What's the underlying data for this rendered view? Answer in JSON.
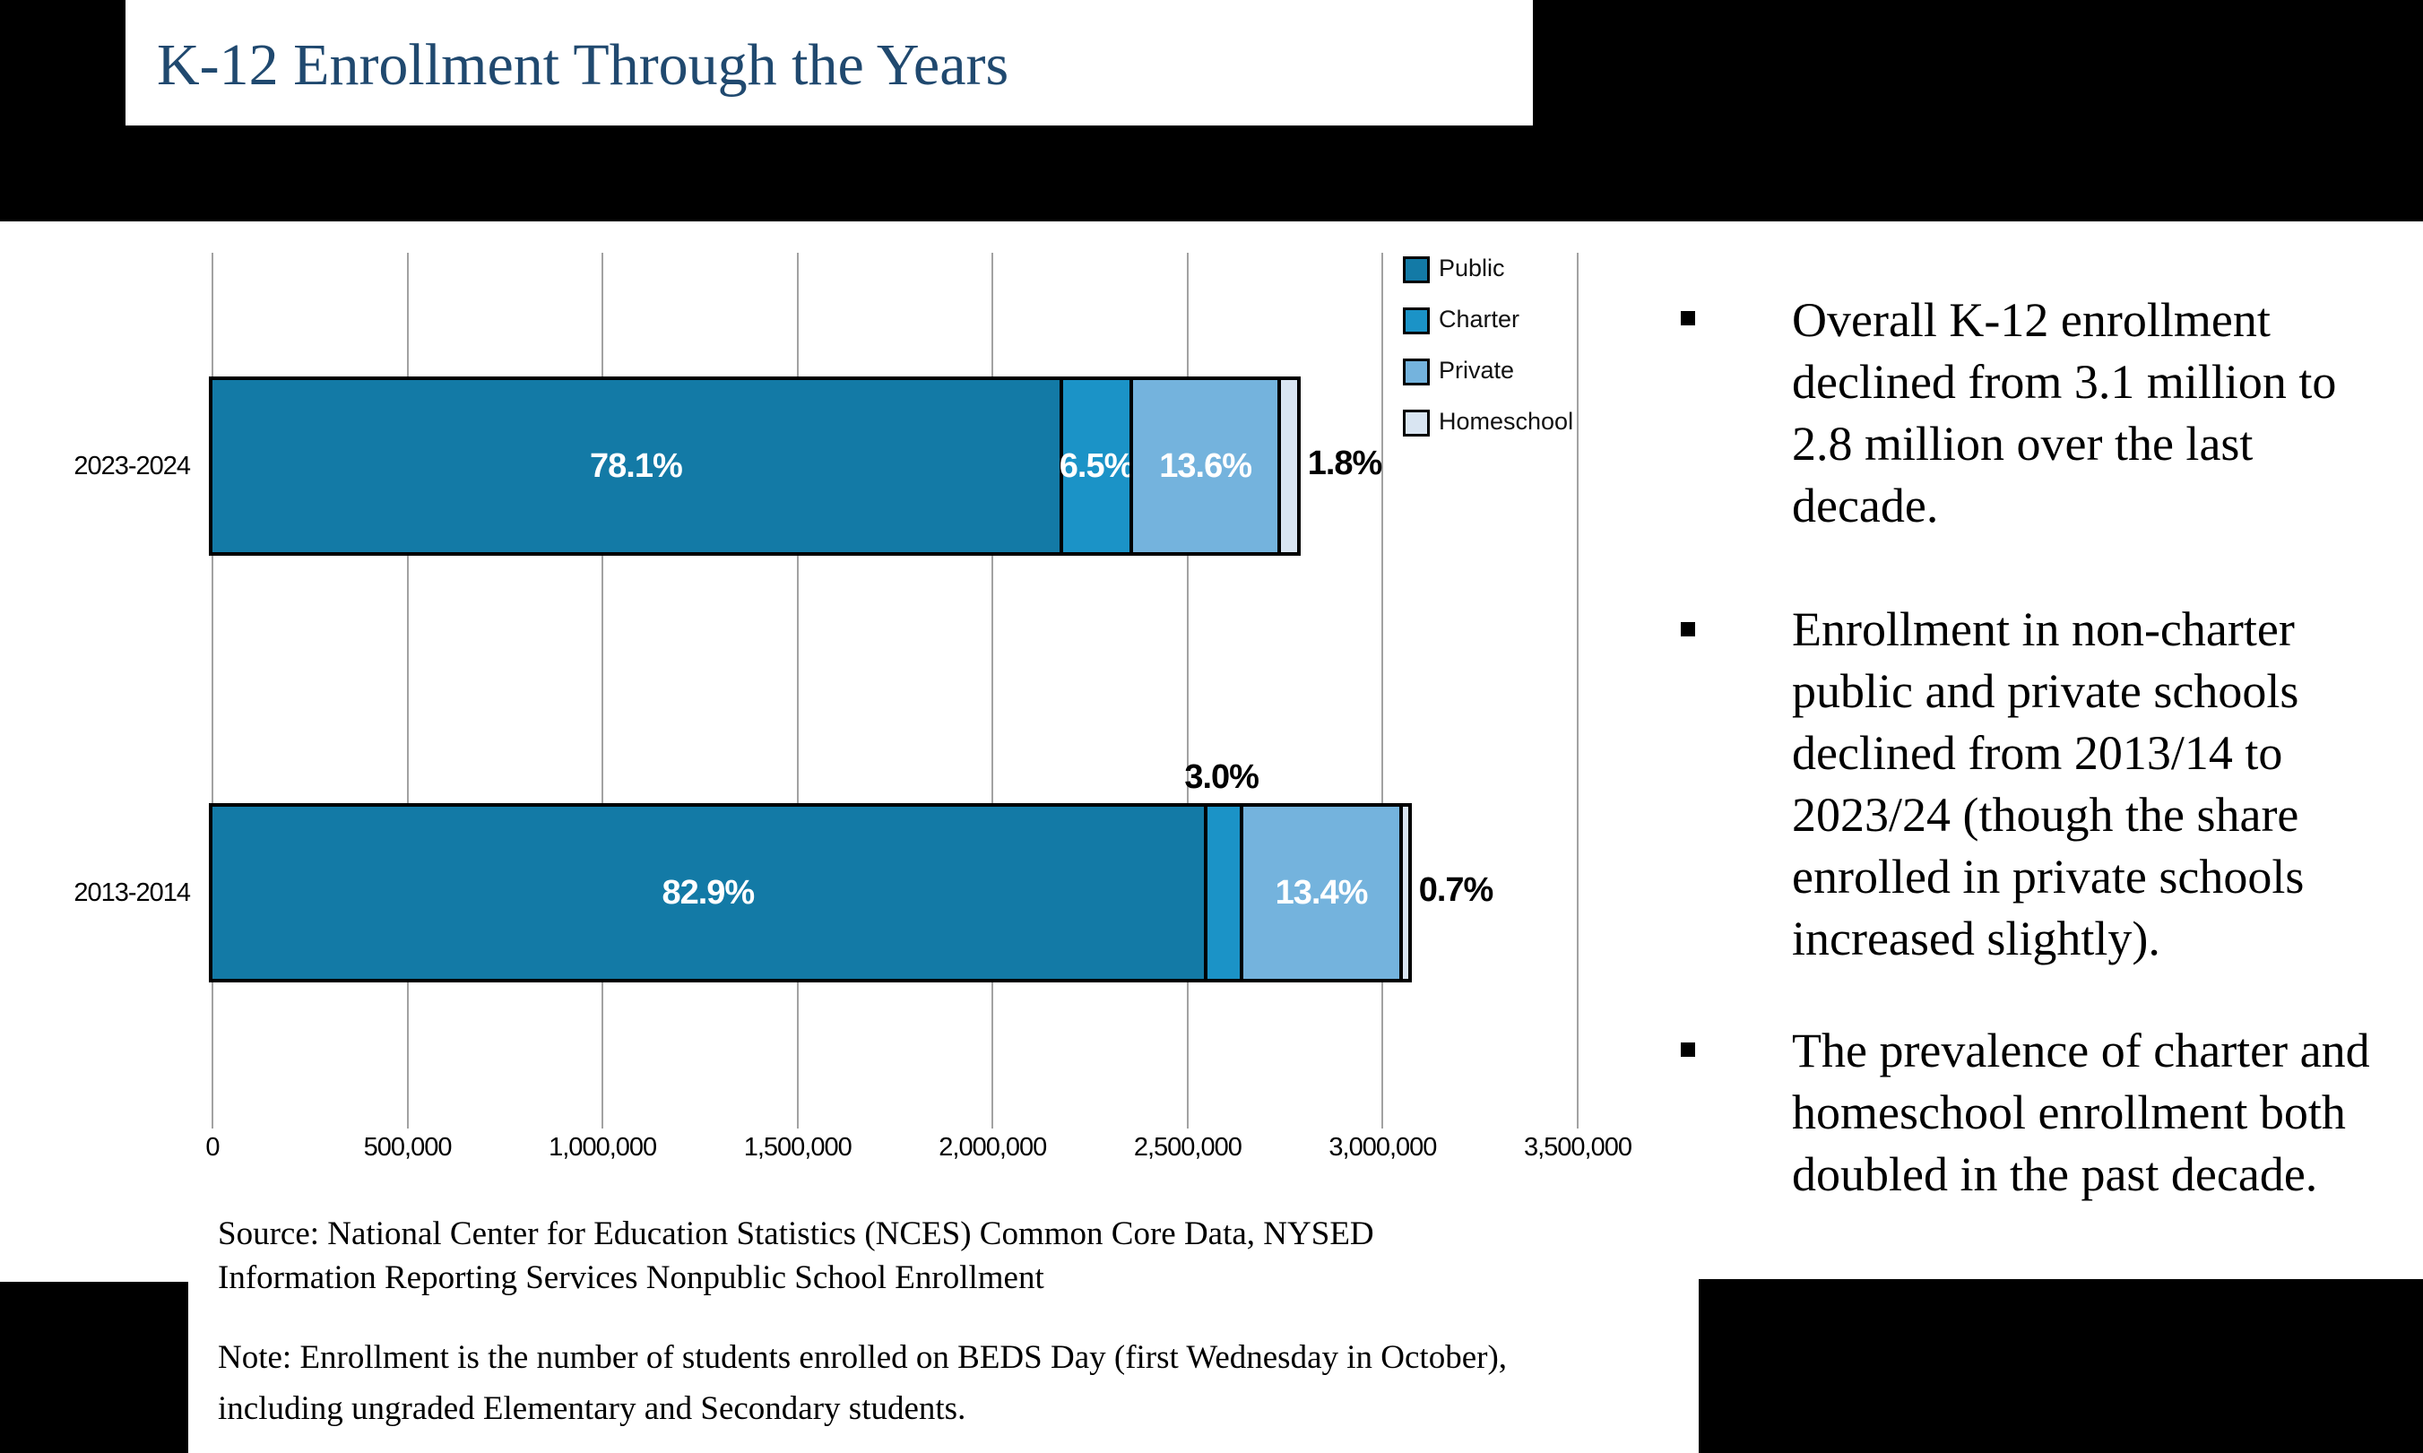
{
  "slide": {
    "title": "K-12 Enrollment Through the Years",
    "source_note": "Source: National Center for Education Statistics (NCES) Common Core Data, NYSED\nInformation Reporting Services Nonpublic School Enrollment",
    "beds_note": "Note: Enrollment is the number of students enrolled on BEDS Day (first Wednesday in October),\nincluding ungraded Elementary and Secondary students.",
    "bullets": [
      "Overall K-12 enrollment\ndeclined from 3.1 million to\n2.8 million over the last\ndecade.",
      "Enrollment in non-charter\npublic and private schools\ndeclined from 2013/14 to\n2023/24 (though the share\nenrolled in private schools\nincreased slightly).",
      "The prevalence of charter and\nhomeschool enrollment both\ndoubled in the past decade."
    ]
  },
  "chart_data": {
    "type": "bar",
    "orientation": "horizontal",
    "stacked": true,
    "grid": true,
    "legend_position": "top-right-inside",
    "categories": [
      "2023-2024",
      "2013-2014"
    ],
    "legend": [
      "Public",
      "Charter",
      "Private",
      "Homeschool"
    ],
    "colors": {
      "Public": "#137AA6",
      "Charter": "#1B93C7",
      "Private": "#74B3DD",
      "Homeschool": "#D9E5F2"
    },
    "x_axis": {
      "min": 0,
      "max": 3500000,
      "tick_step": 500000,
      "tick_labels": [
        "0",
        "500,000",
        "1,000,000",
        "1,500,000",
        "2,000,000",
        "2,500,000",
        "3,000,000",
        "3,500,000"
      ]
    },
    "rows": [
      {
        "category": "2023-2024",
        "total_estimated": 2780000,
        "segments": [
          {
            "name": "Public",
            "pct": 78.1,
            "label": "78.1%",
            "label_style": "inside"
          },
          {
            "name": "Charter",
            "pct": 6.5,
            "label": "6.5%",
            "label_style": "inside"
          },
          {
            "name": "Private",
            "pct": 13.6,
            "label": "13.6%",
            "label_style": "inside"
          },
          {
            "name": "Homeschool",
            "pct": 1.8,
            "label": "1.8%",
            "label_style": "right"
          }
        ]
      },
      {
        "category": "2013-2014",
        "total_estimated": 3065000,
        "segments": [
          {
            "name": "Public",
            "pct": 82.9,
            "label": "82.9%",
            "label_style": "inside"
          },
          {
            "name": "Charter",
            "pct": 3.0,
            "label": "3.0%",
            "label_style": "above"
          },
          {
            "name": "Private",
            "pct": 13.4,
            "label": "13.4%",
            "label_style": "inside"
          },
          {
            "name": "Homeschool",
            "pct": 0.7,
            "label": "0.7%",
            "label_style": "right"
          }
        ]
      }
    ]
  }
}
